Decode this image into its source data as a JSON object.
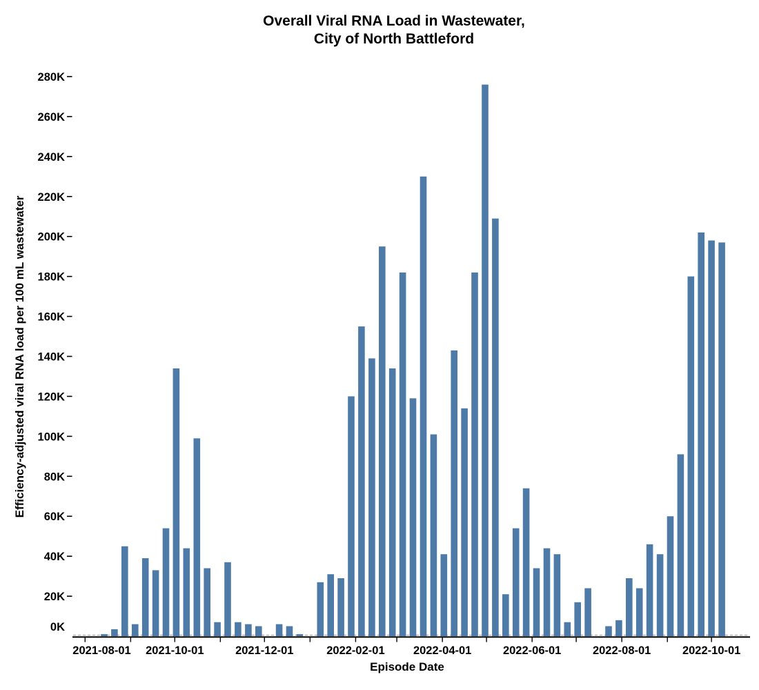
{
  "title": {
    "line1": "Overall Viral RNA Load in Wastewater,",
    "line2": "City of North Battleford"
  },
  "x_axis": {
    "label": "Episode Date",
    "tick_labels": [
      "2021-08-01",
      "2021-10-01",
      "2021-12-01",
      "2022-02-01",
      "2022-04-01",
      "2022-06-01",
      "2022-08-01",
      "2022-10-01"
    ],
    "tick_dates": [
      "2021-08-01",
      "2021-10-01",
      "2021-12-01",
      "2022-02-01",
      "2022-04-01",
      "2022-06-01",
      "2022-08-01",
      "2022-10-01"
    ]
  },
  "y_axis": {
    "label": "Efficiency-adjusted viral RNA load per 100 mL wastewater",
    "tick_labels": [
      "0K",
      "20K",
      "40K",
      "60K",
      "80K",
      "100K",
      "120K",
      "140K",
      "160K",
      "180K",
      "200K",
      "220K",
      "240K",
      "260K",
      "280K"
    ],
    "tick_values": [
      0,
      20,
      40,
      60,
      80,
      100,
      120,
      140,
      160,
      180,
      200,
      220,
      240,
      260,
      280
    ]
  },
  "colors": {
    "bar": "#4e7aa8",
    "axis": "#000000",
    "zero_line": "#aaaaaa",
    "text": "#000000",
    "background": "#ffffff"
  },
  "chart_data": {
    "type": "bar",
    "title": "Overall Viral RNA Load in Wastewater, City of North Battleford",
    "xlabel": "Episode Date",
    "ylabel": "Efficiency-adjusted viral RNA load per 100 mL wastewater",
    "unit": "thousands (K) of viral RNA load per 100 mL wastewater",
    "ylim": [
      0,
      280
    ],
    "y_tick_step": 20,
    "grid": false,
    "legend": null,
    "x_range": [
      "2021-07-24",
      "2022-10-15"
    ],
    "missing_weeks": [
      "2021-12-04",
      "2022-01-01",
      "2022-07-16"
    ],
    "points": [
      {
        "date": "2021-08-14",
        "value_k": 1
      },
      {
        "date": "2021-08-21",
        "value_k": 3.5
      },
      {
        "date": "2021-08-28",
        "value_k": 45
      },
      {
        "date": "2021-09-04",
        "value_k": 6
      },
      {
        "date": "2021-09-11",
        "value_k": 39
      },
      {
        "date": "2021-09-18",
        "value_k": 33
      },
      {
        "date": "2021-09-25",
        "value_k": 54
      },
      {
        "date": "2021-10-02",
        "value_k": 134
      },
      {
        "date": "2021-10-09",
        "value_k": 44
      },
      {
        "date": "2021-10-16",
        "value_k": 99
      },
      {
        "date": "2021-10-23",
        "value_k": 34
      },
      {
        "date": "2021-10-30",
        "value_k": 7
      },
      {
        "date": "2021-11-06",
        "value_k": 37
      },
      {
        "date": "2021-11-13",
        "value_k": 7
      },
      {
        "date": "2021-11-20",
        "value_k": 6
      },
      {
        "date": "2021-11-27",
        "value_k": 5
      },
      {
        "date": "2021-12-11",
        "value_k": 6
      },
      {
        "date": "2021-12-18",
        "value_k": 5
      },
      {
        "date": "2021-12-25",
        "value_k": 1
      },
      {
        "date": "2022-01-08",
        "value_k": 27
      },
      {
        "date": "2022-01-15",
        "value_k": 31
      },
      {
        "date": "2022-01-22",
        "value_k": 29
      },
      {
        "date": "2022-01-29",
        "value_k": 120
      },
      {
        "date": "2022-02-05",
        "value_k": 155
      },
      {
        "date": "2022-02-12",
        "value_k": 139
      },
      {
        "date": "2022-02-19",
        "value_k": 195
      },
      {
        "date": "2022-02-26",
        "value_k": 134
      },
      {
        "date": "2022-03-05",
        "value_k": 182
      },
      {
        "date": "2022-03-12",
        "value_k": 119
      },
      {
        "date": "2022-03-19",
        "value_k": 230
      },
      {
        "date": "2022-03-26",
        "value_k": 101
      },
      {
        "date": "2022-04-02",
        "value_k": 41
      },
      {
        "date": "2022-04-09",
        "value_k": 143
      },
      {
        "date": "2022-04-16",
        "value_k": 114
      },
      {
        "date": "2022-04-23",
        "value_k": 182
      },
      {
        "date": "2022-04-30",
        "value_k": 276
      },
      {
        "date": "2022-05-07",
        "value_k": 209
      },
      {
        "date": "2022-05-14",
        "value_k": 21
      },
      {
        "date": "2022-05-21",
        "value_k": 54
      },
      {
        "date": "2022-05-28",
        "value_k": 74
      },
      {
        "date": "2022-06-04",
        "value_k": 34
      },
      {
        "date": "2022-06-11",
        "value_k": 44
      },
      {
        "date": "2022-06-18",
        "value_k": 41
      },
      {
        "date": "2022-06-25",
        "value_k": 7
      },
      {
        "date": "2022-07-02",
        "value_k": 17
      },
      {
        "date": "2022-07-09",
        "value_k": 24
      },
      {
        "date": "2022-07-23",
        "value_k": 5
      },
      {
        "date": "2022-07-30",
        "value_k": 8
      },
      {
        "date": "2022-08-06",
        "value_k": 29
      },
      {
        "date": "2022-08-13",
        "value_k": 24
      },
      {
        "date": "2022-08-20",
        "value_k": 46
      },
      {
        "date": "2022-08-27",
        "value_k": 41
      },
      {
        "date": "2022-09-03",
        "value_k": 60
      },
      {
        "date": "2022-09-10",
        "value_k": 91
      },
      {
        "date": "2022-09-17",
        "value_k": 180
      },
      {
        "date": "2022-09-24",
        "value_k": 202
      },
      {
        "date": "2022-10-01",
        "value_k": 198
      },
      {
        "date": "2022-10-08",
        "value_k": 197
      }
    ]
  }
}
